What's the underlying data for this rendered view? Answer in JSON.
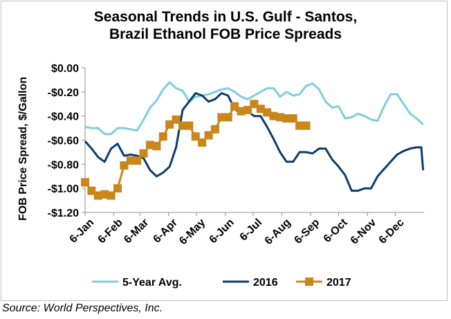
{
  "source": "Source: World Perspectives, Inc.",
  "chart_data": {
    "type": "line",
    "title_line1": "Seasonal Trends in U.S. Gulf - Santos,",
    "title_line2": "Brazil Ethanol FOB Price Spreads",
    "ylabel": "FOB Price Spread, $/Gallon",
    "xlabel": "",
    "ylim": [
      -1.2,
      0.0
    ],
    "yticks": [
      0.0,
      -0.2,
      -0.4,
      -0.6,
      -0.8,
      -1.0,
      -1.2
    ],
    "ytick_labels": [
      "$0.00",
      "-$0.20",
      "-$0.40",
      "-$0.60",
      "-$0.80",
      "-$1.00",
      "-$1.20"
    ],
    "xlim": [
      6,
      371
    ],
    "xticks": [
      6,
      37,
      65,
      96,
      126,
      157,
      187,
      218,
      249,
      279,
      310,
      340
    ],
    "xtick_labels": [
      "6-Jan",
      "6-Feb",
      "6-Mar",
      "6-Apr",
      "6-May",
      "6-Jun",
      "6-Jul",
      "6-Aug",
      "6-Sep",
      "6-Oct",
      "6-Nov",
      "6-Dec"
    ],
    "grid": false,
    "legend_position": "bottom",
    "series": [
      {
        "name": "5-Year Avg.",
        "color": "#7ecde1",
        "marker": "none",
        "x": [
          6,
          13,
          20,
          27,
          34,
          41,
          48,
          55,
          62,
          69,
          76,
          83,
          90,
          97,
          104,
          111,
          118,
          125,
          132,
          139,
          146,
          153,
          160,
          167,
          174,
          181,
          188,
          195,
          202,
          209,
          216,
          223,
          230,
          237,
          244,
          251,
          258,
          265,
          272,
          279,
          286,
          293,
          300,
          307,
          314,
          321,
          328,
          335,
          342,
          349,
          356,
          363,
          370
        ],
        "y": [
          -0.49,
          -0.5,
          -0.5,
          -0.55,
          -0.55,
          -0.5,
          -0.5,
          -0.51,
          -0.52,
          -0.43,
          -0.33,
          -0.27,
          -0.18,
          -0.12,
          -0.17,
          -0.19,
          -0.28,
          -0.24,
          -0.23,
          -0.22,
          -0.2,
          -0.18,
          -0.17,
          -0.2,
          -0.24,
          -0.26,
          -0.23,
          -0.2,
          -0.17,
          -0.17,
          -0.24,
          -0.2,
          -0.23,
          -0.22,
          -0.15,
          -0.13,
          -0.18,
          -0.28,
          -0.33,
          -0.32,
          -0.42,
          -0.41,
          -0.38,
          -0.4,
          -0.43,
          -0.44,
          -0.32,
          -0.22,
          -0.22,
          -0.3,
          -0.38,
          -0.42,
          -0.47
        ]
      },
      {
        "name": "2016",
        "color": "#0a3a6e",
        "marker": "none",
        "x": [
          6,
          13,
          20,
          27,
          34,
          41,
          48,
          55,
          62,
          69,
          76,
          83,
          90,
          97,
          104,
          111,
          118,
          125,
          132,
          139,
          146,
          153,
          160,
          167,
          174,
          181,
          188,
          195,
          202,
          209,
          216,
          223,
          230,
          237,
          244,
          251,
          258,
          265,
          272,
          279,
          286,
          293,
          300,
          307,
          314,
          321,
          328,
          335,
          342,
          349,
          356,
          363,
          368,
          370
        ],
        "y": [
          -0.61,
          -0.67,
          -0.74,
          -0.78,
          -0.67,
          -0.63,
          -0.73,
          -0.72,
          -0.73,
          -0.75,
          -0.85,
          -0.9,
          -0.87,
          -0.82,
          -0.66,
          -0.35,
          -0.28,
          -0.21,
          -0.23,
          -0.28,
          -0.26,
          -0.21,
          -0.23,
          -0.34,
          -0.38,
          -0.36,
          -0.4,
          -0.4,
          -0.49,
          -0.59,
          -0.7,
          -0.78,
          -0.78,
          -0.7,
          -0.7,
          -0.71,
          -0.67,
          -0.67,
          -0.76,
          -0.82,
          -0.89,
          -1.02,
          -1.02,
          -1.0,
          -1.0,
          -0.9,
          -0.84,
          -0.78,
          -0.72,
          -0.69,
          -0.67,
          -0.66,
          -0.66,
          -0.85
        ]
      },
      {
        "name": "2017",
        "color": "#c9861b",
        "marker": "square",
        "x": [
          6,
          13,
          20,
          27,
          34,
          41,
          48,
          55,
          62,
          69,
          76,
          83,
          90,
          97,
          104,
          111,
          118,
          125,
          132,
          139,
          146,
          153,
          160,
          167,
          174,
          181,
          188,
          195,
          202,
          209,
          216,
          223,
          230,
          237,
          244
        ],
        "y": [
          -0.95,
          -1.02,
          -1.06,
          -1.05,
          -1.06,
          -1.0,
          -0.81,
          -0.77,
          -0.77,
          -0.71,
          -0.64,
          -0.65,
          -0.57,
          -0.47,
          -0.43,
          -0.48,
          -0.48,
          -0.57,
          -0.62,
          -0.56,
          -0.51,
          -0.41,
          -0.41,
          -0.32,
          -0.36,
          -0.35,
          -0.3,
          -0.34,
          -0.37,
          -0.4,
          -0.41,
          -0.42,
          -0.42,
          -0.48,
          -0.48
        ]
      }
    ]
  }
}
